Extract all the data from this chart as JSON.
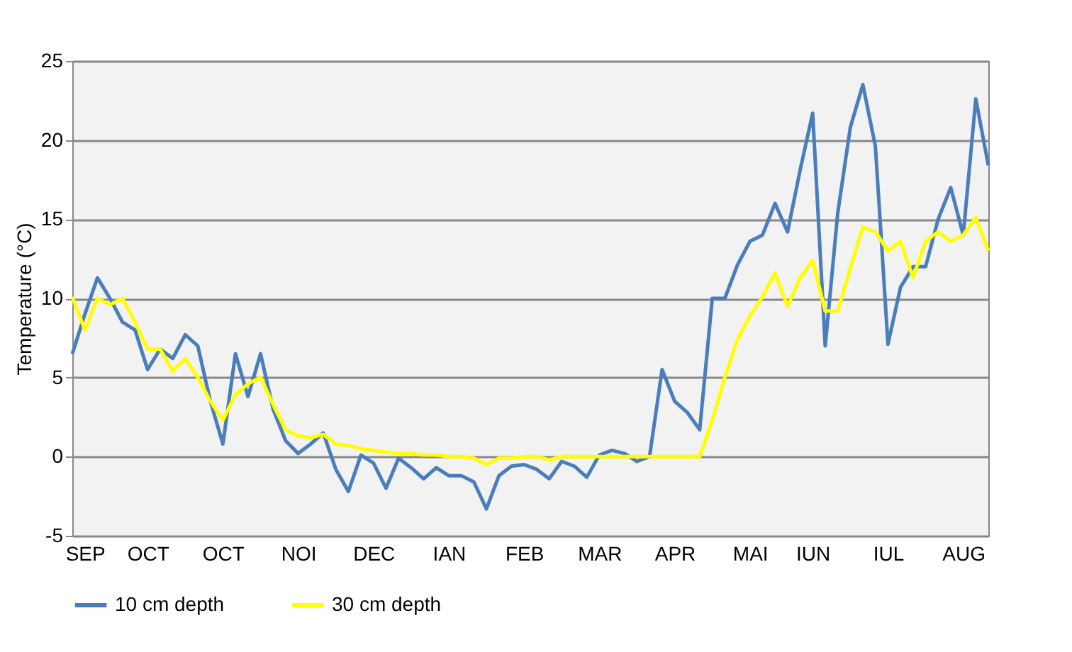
{
  "chart_data": {
    "type": "line",
    "ylabel": "Temperature (°C)",
    "categories": [
      null,
      "SEP",
      null,
      null,
      null,
      null,
      "OCT",
      null,
      null,
      null,
      null,
      null,
      "OCT",
      null,
      null,
      null,
      null,
      null,
      "NOI",
      null,
      null,
      null,
      null,
      null,
      "DEC",
      null,
      null,
      null,
      null,
      null,
      "IAN",
      null,
      null,
      null,
      null,
      null,
      "FEB",
      null,
      null,
      null,
      null,
      null,
      "MAR",
      null,
      null,
      null,
      null,
      null,
      "APR",
      null,
      null,
      null,
      null,
      null,
      "MAI",
      null,
      null,
      null,
      null,
      "IUN",
      null,
      null,
      null,
      null,
      null,
      "IUL",
      null,
      null,
      null,
      null,
      null,
      "AUG",
      null,
      null
    ],
    "ylim": [
      -5,
      25
    ],
    "yticks": [
      -5,
      0,
      5,
      10,
      15,
      20,
      25
    ],
    "grid": "y",
    "legend": "bottom",
    "line_style": "solid",
    "series": [
      {
        "name": "10 cm depth",
        "color": "#4a7ebb",
        "values": [
          6.5,
          9.0,
          11.3,
          10.0,
          8.5,
          8.0,
          5.5,
          6.8,
          6.2,
          7.7,
          7.0,
          3.5,
          0.8,
          6.5,
          3.8,
          6.5,
          3.0,
          1.0,
          0.2,
          0.8,
          1.5,
          -0.8,
          -2.2,
          0.1,
          -0.4,
          -2.0,
          -0.1,
          -0.7,
          -1.4,
          -0.7,
          -1.2,
          -1.2,
          -1.6,
          -3.3,
          -1.2,
          -0.6,
          -0.5,
          -0.8,
          -1.4,
          -0.3,
          -0.6,
          -1.3,
          0.1,
          0.4,
          0.2,
          -0.3,
          0,
          5.5,
          3.5,
          2.8,
          1.7,
          10.0,
          10.0,
          12.1,
          13.6,
          14.0,
          16.0,
          14.2,
          18.1,
          21.7,
          7.0,
          15.4,
          20.8,
          23.5,
          19.6,
          7.1,
          10.7,
          12.0,
          12.0,
          15.0,
          17.0,
          14.0,
          22.6,
          18.4
        ]
      },
      {
        "name": "30 cm depth",
        "color": "#ffff00",
        "values": [
          10.1,
          8.0,
          10.0,
          9.6,
          10.0,
          8.5,
          6.8,
          6.8,
          5.4,
          6.2,
          5.0,
          3.5,
          2.3,
          3.9,
          4.6,
          5.0,
          3.3,
          1.7,
          1.3,
          1.2,
          1.4,
          0.8,
          0.7,
          0.5,
          0.4,
          0.3,
          0.2,
          0.2,
          0.1,
          0.1,
          0,
          0,
          -0.1,
          -0.5,
          -0.1,
          -0.1,
          0,
          0,
          -0.2,
          0,
          0,
          0,
          0,
          0,
          0,
          0,
          0,
          0,
          0,
          0,
          0,
          2.3,
          5.0,
          7.4,
          8.9,
          10.1,
          11.6,
          9.5,
          11.3,
          12.4,
          9.2,
          9.2,
          11.9,
          14.5,
          14.2,
          13.0,
          13.6,
          11.3,
          13.6,
          14.2,
          13.6,
          14.0,
          15.1,
          13.0
        ]
      }
    ]
  }
}
